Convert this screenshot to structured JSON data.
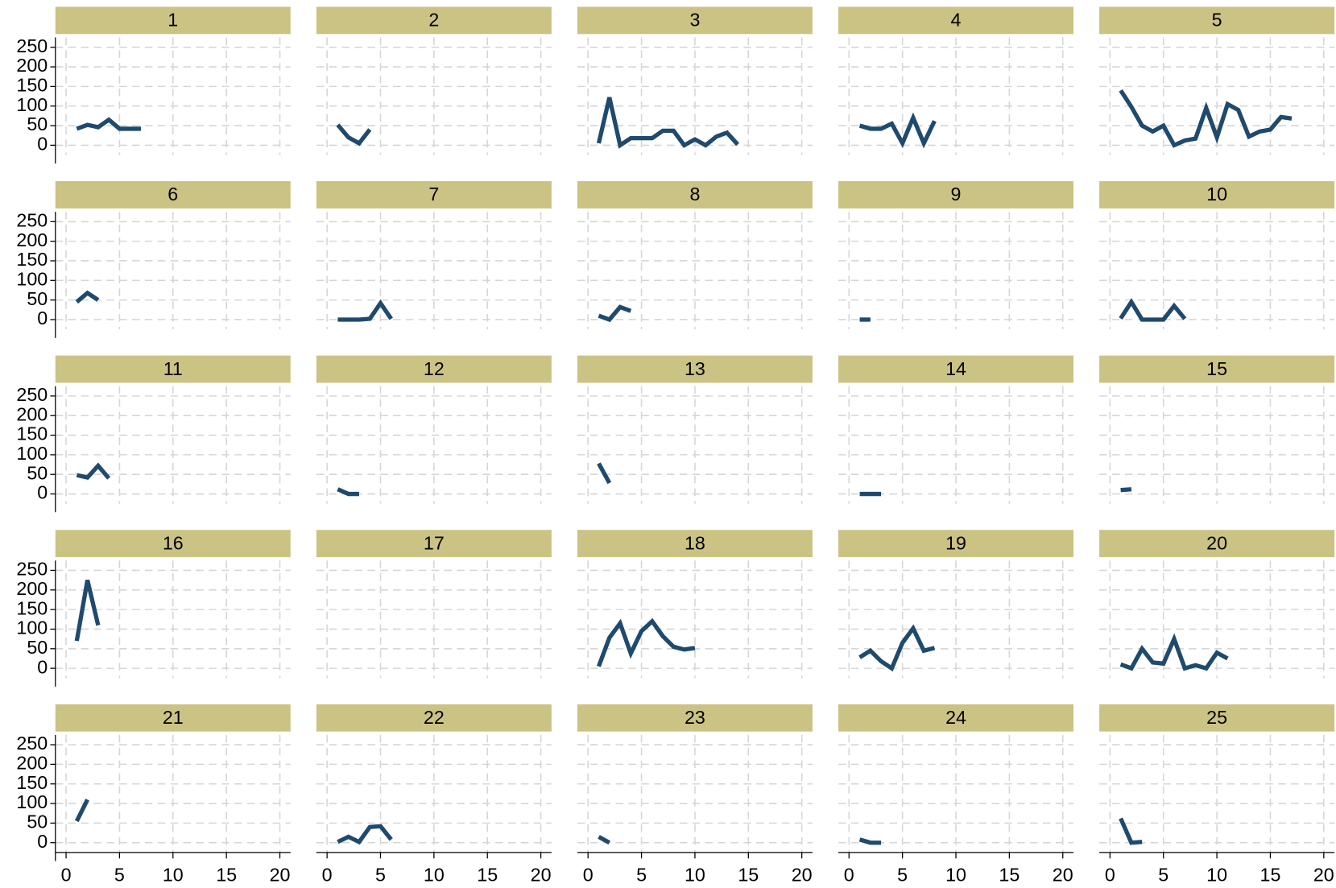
{
  "chart_data": [
    {
      "type": "line",
      "title": "1",
      "color": "#1f4a6e",
      "x": [
        1,
        2,
        3,
        4,
        5,
        6,
        7
      ],
      "values": [
        42,
        52,
        46,
        65,
        42,
        42,
        42
      ],
      "xlim": [
        -1,
        21
      ],
      "ylim": [
        -25,
        275
      ],
      "xticks": [
        0,
        5,
        10,
        15,
        20
      ],
      "yticks": [
        0,
        50,
        100,
        150,
        200,
        250
      ]
    },
    {
      "type": "line",
      "title": "2",
      "color": "#1f4a6e",
      "x": [
        1,
        2,
        3,
        4
      ],
      "values": [
        52,
        20,
        5,
        40
      ],
      "xlim": [
        -1,
        21
      ],
      "ylim": [
        -25,
        275
      ],
      "xticks": [
        0,
        5,
        10,
        15,
        20
      ],
      "yticks": [
        0,
        50,
        100,
        150,
        200,
        250
      ]
    },
    {
      "type": "line",
      "title": "3",
      "color": "#1f4a6e",
      "x": [
        1,
        2,
        3,
        4,
        5,
        6,
        7,
        8,
        9,
        10,
        11,
        12,
        13,
        14
      ],
      "values": [
        5,
        122,
        0,
        18,
        18,
        18,
        37,
        37,
        0,
        15,
        0,
        22,
        32,
        2
      ],
      "xlim": [
        -1,
        21
      ],
      "ylim": [
        -25,
        275
      ],
      "xticks": [
        0,
        5,
        10,
        15,
        20
      ],
      "yticks": [
        0,
        50,
        100,
        150,
        200,
        250
      ]
    },
    {
      "type": "line",
      "title": "4",
      "color": "#1f4a6e",
      "x": [
        1,
        2,
        3,
        4,
        5,
        6,
        7,
        8
      ],
      "values": [
        50,
        42,
        42,
        55,
        5,
        70,
        5,
        62
      ],
      "xlim": [
        -1,
        21
      ],
      "ylim": [
        -25,
        275
      ],
      "xticks": [
        0,
        5,
        10,
        15,
        20
      ],
      "yticks": [
        0,
        50,
        100,
        150,
        200,
        250
      ]
    },
    {
      "type": "line",
      "title": "5",
      "color": "#1f4a6e",
      "x": [
        1,
        2,
        3,
        4,
        5,
        6,
        7,
        8,
        9,
        10,
        11,
        12,
        13,
        14,
        15,
        16,
        17
      ],
      "values": [
        140,
        98,
        50,
        35,
        50,
        0,
        12,
        17,
        95,
        20,
        105,
        90,
        22,
        35,
        40,
        72,
        68
      ],
      "xlim": [
        -1,
        21
      ],
      "ylim": [
        -25,
        275
      ],
      "xticks": [
        0,
        5,
        10,
        15,
        20
      ],
      "yticks": [
        0,
        50,
        100,
        150,
        200,
        250
      ]
    },
    {
      "type": "line",
      "title": "6",
      "color": "#1f4a6e",
      "x": [
        1,
        2,
        3
      ],
      "values": [
        45,
        68,
        50
      ],
      "xlim": [
        -1,
        21
      ],
      "ylim": [
        -25,
        275
      ],
      "xticks": [
        0,
        5,
        10,
        15,
        20
      ],
      "yticks": [
        0,
        50,
        100,
        150,
        200,
        250
      ]
    },
    {
      "type": "line",
      "title": "7",
      "color": "#1f4a6e",
      "x": [
        1,
        2,
        3,
        4,
        5,
        6
      ],
      "values": [
        0,
        0,
        0,
        2,
        42,
        2
      ],
      "xlim": [
        -1,
        21
      ],
      "ylim": [
        -25,
        275
      ],
      "xticks": [
        0,
        5,
        10,
        15,
        20
      ],
      "yticks": [
        0,
        50,
        100,
        150,
        200,
        250
      ]
    },
    {
      "type": "line",
      "title": "8",
      "color": "#1f4a6e",
      "x": [
        1,
        2,
        3,
        4
      ],
      "values": [
        10,
        0,
        32,
        22
      ],
      "xlim": [
        -1,
        21
      ],
      "ylim": [
        -25,
        275
      ],
      "xticks": [
        0,
        5,
        10,
        15,
        20
      ],
      "yticks": [
        0,
        50,
        100,
        150,
        200,
        250
      ]
    },
    {
      "type": "line",
      "title": "9",
      "color": "#1f4a6e",
      "x": [
        1,
        2
      ],
      "values": [
        0,
        0
      ],
      "xlim": [
        -1,
        21
      ],
      "ylim": [
        -25,
        275
      ],
      "xticks": [
        0,
        5,
        10,
        15,
        20
      ],
      "yticks": [
        0,
        50,
        100,
        150,
        200,
        250
      ]
    },
    {
      "type": "line",
      "title": "10",
      "color": "#1f4a6e",
      "x": [
        1,
        2,
        3,
        4,
        5,
        6,
        7
      ],
      "values": [
        3,
        45,
        0,
        0,
        0,
        35,
        2
      ],
      "xlim": [
        -1,
        21
      ],
      "ylim": [
        -25,
        275
      ],
      "xticks": [
        0,
        5,
        10,
        15,
        20
      ],
      "yticks": [
        0,
        50,
        100,
        150,
        200,
        250
      ]
    },
    {
      "type": "line",
      "title": "11",
      "color": "#1f4a6e",
      "x": [
        1,
        2,
        3,
        4
      ],
      "values": [
        48,
        42,
        72,
        40
      ],
      "xlim": [
        -1,
        21
      ],
      "ylim": [
        -25,
        275
      ],
      "xticks": [
        0,
        5,
        10,
        15,
        20
      ],
      "yticks": [
        0,
        50,
        100,
        150,
        200,
        250
      ]
    },
    {
      "type": "line",
      "title": "12",
      "color": "#1f4a6e",
      "x": [
        1,
        2,
        3
      ],
      "values": [
        12,
        0,
        0
      ],
      "xlim": [
        -1,
        21
      ],
      "ylim": [
        -25,
        275
      ],
      "xticks": [
        0,
        5,
        10,
        15,
        20
      ],
      "yticks": [
        0,
        50,
        100,
        150,
        200,
        250
      ]
    },
    {
      "type": "line",
      "title": "13",
      "color": "#1f4a6e",
      "x": [
        1,
        2
      ],
      "values": [
        78,
        28
      ],
      "xlim": [
        -1,
        21
      ],
      "ylim": [
        -25,
        275
      ],
      "xticks": [
        0,
        5,
        10,
        15,
        20
      ],
      "yticks": [
        0,
        50,
        100,
        150,
        200,
        250
      ]
    },
    {
      "type": "line",
      "title": "14",
      "color": "#1f4a6e",
      "x": [
        1,
        2,
        3
      ],
      "values": [
        0,
        0,
        0
      ],
      "xlim": [
        -1,
        21
      ],
      "ylim": [
        -25,
        275
      ],
      "xticks": [
        0,
        5,
        10,
        15,
        20
      ],
      "yticks": [
        0,
        50,
        100,
        150,
        200,
        250
      ]
    },
    {
      "type": "line",
      "title": "15",
      "color": "#1f4a6e",
      "x": [
        1,
        2
      ],
      "values": [
        10,
        12
      ],
      "xlim": [
        -1,
        21
      ],
      "ylim": [
        -25,
        275
      ],
      "xticks": [
        0,
        5,
        10,
        15,
        20
      ],
      "yticks": [
        0,
        50,
        100,
        150,
        200,
        250
      ]
    },
    {
      "type": "line",
      "title": "16",
      "color": "#1f4a6e",
      "x": [
        1,
        2,
        3
      ],
      "values": [
        70,
        225,
        110
      ],
      "xlim": [
        -1,
        21
      ],
      "ylim": [
        -25,
        275
      ],
      "xticks": [
        0,
        5,
        10,
        15,
        20
      ],
      "yticks": [
        0,
        50,
        100,
        150,
        200,
        250
      ]
    },
    {
      "type": "line",
      "title": "17",
      "color": "#1f4a6e",
      "x": [],
      "values": [],
      "xlim": [
        -1,
        21
      ],
      "ylim": [
        -25,
        275
      ],
      "xticks": [
        0,
        5,
        10,
        15,
        20
      ],
      "yticks": [
        0,
        50,
        100,
        150,
        200,
        250
      ]
    },
    {
      "type": "line",
      "title": "18",
      "color": "#1f4a6e",
      "x": [
        1,
        2,
        3,
        4,
        5,
        6,
        7,
        8,
        9,
        10
      ],
      "values": [
        5,
        78,
        115,
        38,
        95,
        120,
        82,
        55,
        48,
        52
      ],
      "xlim": [
        -1,
        21
      ],
      "ylim": [
        -25,
        275
      ],
      "xticks": [
        0,
        5,
        10,
        15,
        20
      ],
      "yticks": [
        0,
        50,
        100,
        150,
        200,
        250
      ]
    },
    {
      "type": "line",
      "title": "19",
      "color": "#1f4a6e",
      "x": [
        1,
        2,
        3,
        4,
        5,
        6,
        7,
        8
      ],
      "values": [
        28,
        45,
        18,
        0,
        65,
        102,
        45,
        52
      ],
      "xlim": [
        -1,
        21
      ],
      "ylim": [
        -25,
        275
      ],
      "xticks": [
        0,
        5,
        10,
        15,
        20
      ],
      "yticks": [
        0,
        50,
        100,
        150,
        200,
        250
      ]
    },
    {
      "type": "line",
      "title": "20",
      "color": "#1f4a6e",
      "x": [
        1,
        2,
        3,
        4,
        5,
        6,
        7,
        8,
        9,
        10,
        11
      ],
      "values": [
        10,
        0,
        50,
        15,
        12,
        75,
        0,
        8,
        0,
        40,
        25
      ],
      "xlim": [
        -1,
        21
      ],
      "ylim": [
        -25,
        275
      ],
      "xticks": [
        0,
        5,
        10,
        15,
        20
      ],
      "yticks": [
        0,
        50,
        100,
        150,
        200,
        250
      ]
    },
    {
      "type": "line",
      "title": "21",
      "color": "#1f4a6e",
      "x": [
        1,
        2
      ],
      "values": [
        55,
        110
      ],
      "xlim": [
        -1,
        21
      ],
      "ylim": [
        -25,
        275
      ],
      "xticks": [
        0,
        5,
        10,
        15,
        20
      ],
      "yticks": [
        0,
        50,
        100,
        150,
        200,
        250
      ]
    },
    {
      "type": "line",
      "title": "22",
      "color": "#1f4a6e",
      "x": [
        1,
        2,
        3,
        4,
        5,
        6
      ],
      "values": [
        2,
        15,
        2,
        40,
        42,
        8
      ],
      "xlim": [
        -1,
        21
      ],
      "ylim": [
        -25,
        275
      ],
      "xticks": [
        0,
        5,
        10,
        15,
        20
      ],
      "yticks": [
        0,
        50,
        100,
        150,
        200,
        250
      ]
    },
    {
      "type": "line",
      "title": "23",
      "color": "#1f4a6e",
      "x": [
        1,
        2
      ],
      "values": [
        15,
        0
      ],
      "xlim": [
        -1,
        21
      ],
      "ylim": [
        -25,
        275
      ],
      "xticks": [
        0,
        5,
        10,
        15,
        20
      ],
      "yticks": [
        0,
        50,
        100,
        150,
        200,
        250
      ]
    },
    {
      "type": "line",
      "title": "24",
      "color": "#1f4a6e",
      "x": [
        1,
        2,
        3
      ],
      "values": [
        8,
        0,
        0
      ],
      "xlim": [
        -1,
        21
      ],
      "ylim": [
        -25,
        275
      ],
      "xticks": [
        0,
        5,
        10,
        15,
        20
      ],
      "yticks": [
        0,
        50,
        100,
        150,
        200,
        250
      ]
    },
    {
      "type": "line",
      "title": "25",
      "color": "#1f4a6e",
      "x": [
        1,
        2,
        3
      ],
      "values": [
        62,
        0,
        2
      ],
      "xlim": [
        -1,
        21
      ],
      "ylim": [
        -25,
        275
      ],
      "xticks": [
        0,
        5,
        10,
        15,
        20
      ],
      "yticks": [
        0,
        50,
        100,
        150,
        200,
        250
      ]
    }
  ]
}
